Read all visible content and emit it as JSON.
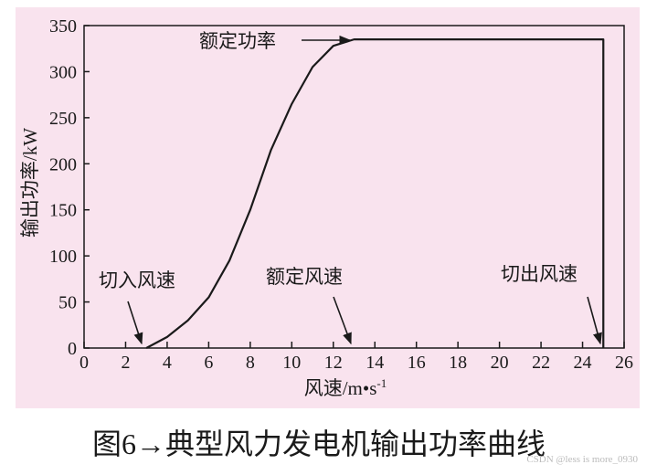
{
  "chart_data": {
    "type": "line",
    "ylabel": "输出功率/kW",
    "xlabel": "风速/m•s",
    "xlabel_sup": "-1",
    "caption": "图6→典型风力发电机输出功率曲线",
    "watermark": "CSDN @less is more_0930",
    "annotations": [
      "额定功率",
      "切入风速",
      "额定风速",
      "切出风速"
    ],
    "x": [
      3,
      4,
      5,
      6,
      7,
      8,
      9,
      10,
      11,
      12,
      13,
      25,
      25
    ],
    "series": [
      {
        "name": "输出功率",
        "color": "#1a1a1a",
        "values": [
          0,
          12,
          30,
          55,
          95,
          150,
          215,
          265,
          305,
          328,
          335,
          335,
          0
        ]
      }
    ],
    "xlim": [
      0,
      26
    ],
    "xticks": [
      0,
      2,
      4,
      6,
      8,
      10,
      12,
      14,
      16,
      18,
      20,
      22,
      24,
      26
    ],
    "ylim": [
      0,
      350
    ],
    "yticks": [
      0,
      50,
      100,
      150,
      200,
      250,
      300,
      350
    ],
    "grid": false
  }
}
